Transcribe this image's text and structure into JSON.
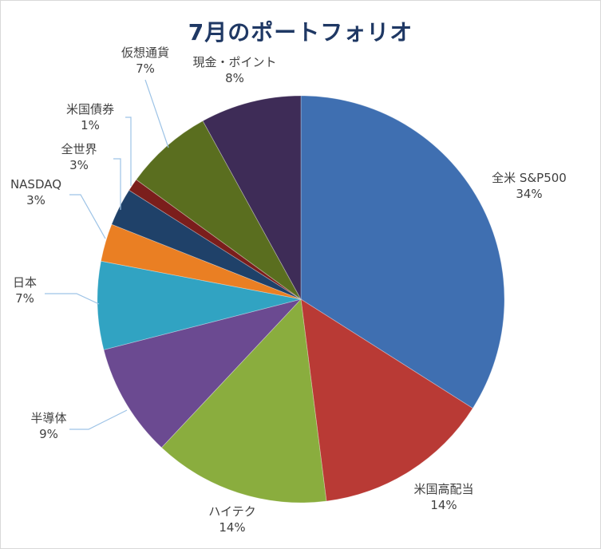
{
  "chart_data": {
    "type": "pie",
    "title": "7月のポートフォリオ",
    "slices": [
      {
        "label": "全米 S&P500",
        "value": 34,
        "pct_label": "34%",
        "color": "#3f6fb1"
      },
      {
        "label": "米国高配当",
        "value": 14,
        "pct_label": "14%",
        "color": "#b93a35"
      },
      {
        "label": "ハイテク",
        "value": 14,
        "pct_label": "14%",
        "color": "#8aad3e"
      },
      {
        "label": "半導体",
        "value": 9,
        "pct_label": "9%",
        "color": "#6b4a91"
      },
      {
        "label": "日本",
        "value": 7,
        "pct_label": "7%",
        "color": "#31a3c2"
      },
      {
        "label": "NASDAQ",
        "value": 3,
        "pct_label": "3%",
        "color": "#ea7f23"
      },
      {
        "label": "全世界",
        "value": 3,
        "pct_label": "3%",
        "color": "#1f4169"
      },
      {
        "label": "米国債券",
        "value": 1,
        "pct_label": "1%",
        "color": "#7b1e1c"
      },
      {
        "label": "仮想通貨",
        "value": 7,
        "pct_label": "7%",
        "color": "#5a6e1f"
      },
      {
        "label": "現金・ポイント",
        "value": 8,
        "pct_label": "8%",
        "color": "#3e2c57"
      }
    ],
    "start_angle_deg": 0,
    "direction": "clockwise",
    "legend": "none"
  }
}
